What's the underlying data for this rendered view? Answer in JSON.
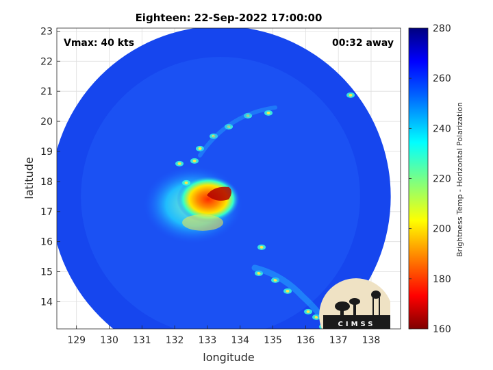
{
  "title": "Eighteen: 22-Sep-2022 17:00:00",
  "annotations": {
    "vmax": "Vmax: 40 kts",
    "time_away": "00:32 away"
  },
  "axes": {
    "xlabel": "longitude",
    "ylabel": "latitude",
    "xlim": [
      128.4,
      138.9
    ],
    "ylim": [
      13.1,
      23.1
    ],
    "xticks": [
      "129",
      "130",
      "131",
      "132",
      "133",
      "134",
      "135",
      "136",
      "137",
      "138"
    ],
    "yticks": [
      "14",
      "15",
      "16",
      "17",
      "18",
      "19",
      "20",
      "21",
      "22",
      "23"
    ]
  },
  "colorbar": {
    "label": "Brightness Temp - Horizontal Polarization",
    "min": 160,
    "max": 280,
    "ticks": [
      "160",
      "180",
      "200",
      "220",
      "240",
      "260",
      "280"
    ]
  },
  "logo": {
    "text": "CIMSS"
  },
  "chart_data": {
    "type": "heatmap",
    "title": "Eighteen: 22-Sep-2022 17:00:00",
    "xlabel": "longitude",
    "ylabel": "latitude",
    "xlim": [
      128.4,
      138.9
    ],
    "ylim": [
      13.1,
      23.1
    ],
    "colorbar_range": [
      160,
      280
    ],
    "colormap": "jet",
    "swath_center": [
      133.4,
      17.5
    ],
    "swath_radius_deg": 5.2,
    "storm_center": [
      133.4,
      17.5
    ],
    "min_brightness_temp_approx": 175,
    "background_brightness_temp_approx": 262,
    "grid": true
  }
}
